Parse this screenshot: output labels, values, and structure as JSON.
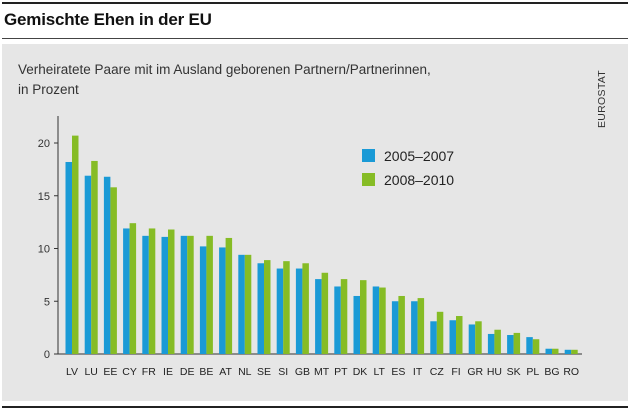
{
  "header": {
    "title": "Gemischte Ehen in der EU"
  },
  "source": "EUROSTAT",
  "colors": {
    "series_1": "#1a9ad6",
    "series_2": "#86bc25",
    "panel": "#e6e6e6"
  },
  "chart_data": {
    "type": "bar",
    "title": "Verheiratete Paare mit im Ausland geborenen Partnern/Partnerinnen,",
    "subtitle": "in Prozent",
    "xlabel": "",
    "ylabel": "",
    "ylim": [
      0,
      22
    ],
    "yticks": [
      0,
      5,
      10,
      15,
      20
    ],
    "grid": false,
    "legend_position": "top-right",
    "categories": [
      "LV",
      "LU",
      "EE",
      "CY",
      "FR",
      "IE",
      "DE",
      "BE",
      "AT",
      "NL",
      "SE",
      "SI",
      "GB",
      "MT",
      "PT",
      "DK",
      "LT",
      "ES",
      "IT",
      "CZ",
      "FI",
      "GR",
      "HU",
      "SK",
      "PL",
      "BG",
      "RO"
    ],
    "series": [
      {
        "name": "2005–2007",
        "values": [
          18.2,
          16.9,
          16.8,
          11.9,
          11.2,
          11.1,
          11.2,
          10.2,
          10.1,
          9.4,
          8.6,
          8.1,
          8.1,
          7.1,
          6.4,
          5.5,
          6.4,
          5.0,
          5.0,
          3.1,
          3.2,
          2.8,
          1.9,
          1.8,
          1.6,
          0.5,
          0.4
        ]
      },
      {
        "name": "2008–2010",
        "values": [
          20.7,
          18.3,
          15.8,
          12.4,
          11.9,
          11.8,
          11.2,
          11.2,
          11.0,
          9.4,
          8.9,
          8.8,
          8.6,
          7.7,
          7.1,
          7.0,
          6.3,
          5.5,
          5.3,
          4.0,
          3.6,
          3.1,
          2.3,
          2.0,
          1.4,
          0.5,
          0.4
        ]
      }
    ]
  }
}
